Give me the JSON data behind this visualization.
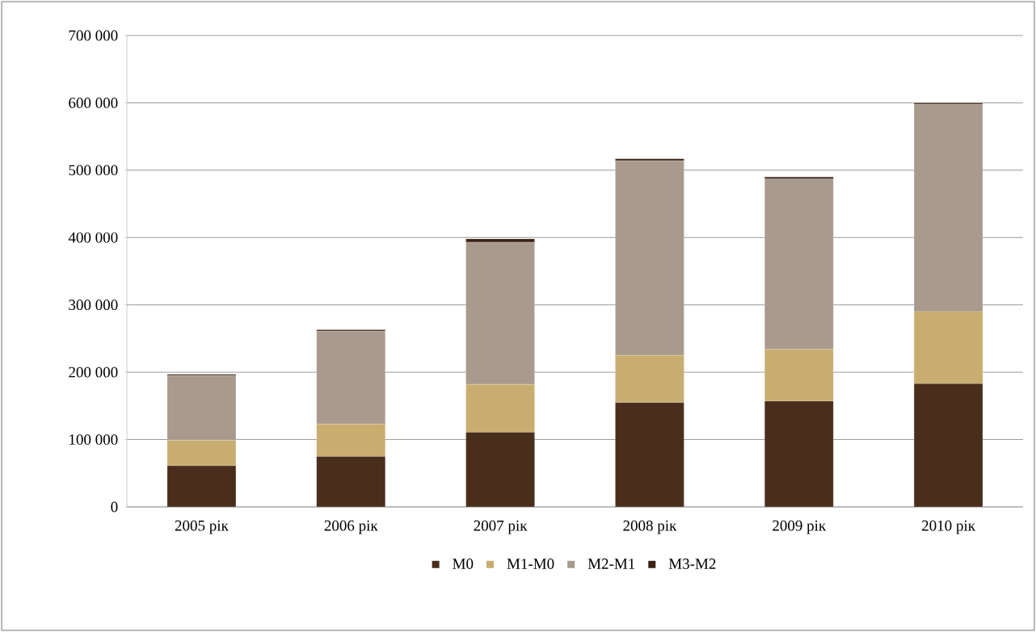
{
  "chart_data": {
    "type": "bar",
    "stacked": true,
    "categories": [
      "2005 рік",
      "2006 рік",
      "2007 рік",
      "2008 рік",
      "2009 рік",
      "2010 рік"
    ],
    "series": [
      {
        "name": "M0",
        "color": "#4a2e1c",
        "values": [
          61000,
          75000,
          111000,
          155000,
          157000,
          183000
        ]
      },
      {
        "name": "M1-M0",
        "color": "#c9ad70",
        "values": [
          38000,
          48000,
          71000,
          70000,
          77000,
          107000
        ]
      },
      {
        "name": "M2-M1",
        "color": "#a89a8c",
        "values": [
          96000,
          138000,
          211000,
          289000,
          253000,
          308000
        ]
      },
      {
        "name": "M3-M2",
        "color": "#3a2216",
        "values": [
          2000,
          2000,
          5000,
          3000,
          3000,
          2000
        ]
      }
    ],
    "ylim": [
      0,
      700000
    ],
    "yticks": [
      0,
      {
        "value": 100000,
        "label": "100 000"
      },
      {
        "value": 200000,
        "label": "200 000"
      },
      {
        "value": 300000,
        "label": "300 000"
      },
      {
        "value": 400000,
        "label": "400 000"
      },
      {
        "value": 500000,
        "label": "500 000"
      },
      {
        "value": 600000,
        "label": "600 000"
      },
      {
        "value": 700000,
        "label": "700 000"
      }
    ],
    "grid": "y",
    "legend": "bottom"
  }
}
